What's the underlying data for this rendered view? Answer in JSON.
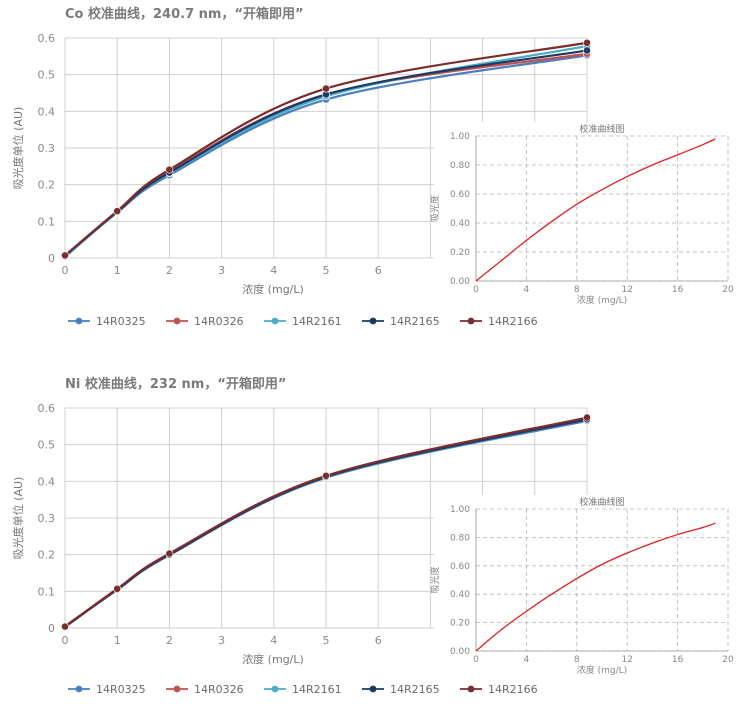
{
  "panels": [
    {
      "title": "Co 校准曲线，240.7 nm，“开箱即用”",
      "ylabel": "吸光度单位 (AU)",
      "xlabel": "浓度 (mg/L)"
    },
    {
      "title": "Ni 校准曲线，232 nm，“开箱即用”",
      "ylabel": "吸光度单位 (AU)",
      "xlabel": "浓度 (mg/L)"
    }
  ],
  "chart_data": [
    {
      "type": "line",
      "title": "Co 校准曲线，240.7 nm，“开箱即用”",
      "xlabel": "浓度 (mg/L)",
      "ylabel": "吸光度单位 (AU)",
      "x_ticks": [
        "0",
        "1",
        "2",
        "3",
        "4",
        "5",
        "6"
      ],
      "y_ticks": [
        "0",
        "0.1",
        "0.2",
        "0.3",
        "0.4",
        "0.5",
        "0.6"
      ],
      "xlim": [
        0,
        10
      ],
      "ylim": [
        0,
        0.6
      ],
      "grid": true,
      "legend": "bottom",
      "x": [
        0,
        1,
        2,
        5,
        10
      ],
      "series": [
        {
          "name": "14R0325",
          "color": "#4a7fc0",
          "values": [
            0.003,
            0.124,
            0.226,
            0.432,
            0.553
          ]
        },
        {
          "name": "14R0326",
          "color": "#c0504d",
          "values": [
            0.005,
            0.126,
            0.236,
            0.446,
            0.557
          ]
        },
        {
          "name": "14R2161",
          "color": "#4bacc6",
          "values": [
            0.004,
            0.125,
            0.231,
            0.441,
            0.578
          ]
        },
        {
          "name": "14R2165",
          "color": "#1f3864",
          "values": [
            0.006,
            0.126,
            0.233,
            0.446,
            0.566
          ]
        },
        {
          "name": "14R2166",
          "color": "#7b2c2c",
          "values": [
            0.007,
            0.128,
            0.241,
            0.462,
            0.587
          ]
        }
      ],
      "inset": {
        "title": "校准曲线图",
        "ylabel": "吸光度",
        "xlabel": "浓度 (mg/L)",
        "x_ticks": [
          "0",
          "4",
          "8",
          "12",
          "16",
          "20"
        ],
        "y_ticks": [
          "0.00",
          "0.20",
          "0.40",
          "0.60",
          "0.80",
          "1.00"
        ],
        "xlim": [
          0,
          20
        ],
        "ylim": [
          0,
          1
        ],
        "color": "#e02020",
        "x": [
          0,
          2,
          4,
          6,
          8,
          10,
          12,
          14,
          16,
          18,
          19
        ],
        "y": [
          0.0,
          0.14,
          0.28,
          0.41,
          0.53,
          0.63,
          0.72,
          0.8,
          0.87,
          0.94,
          0.98
        ]
      }
    },
    {
      "type": "line",
      "title": "Ni 校准曲线，232 nm，“开箱即用”",
      "xlabel": "浓度 (mg/L)",
      "ylabel": "吸光度单位 (AU)",
      "x_ticks": [
        "0",
        "1",
        "2",
        "3",
        "4",
        "5",
        "6"
      ],
      "y_ticks": [
        "0",
        "0.1",
        "0.2",
        "0.3",
        "0.4",
        "0.5",
        "0.6"
      ],
      "xlim": [
        0,
        10
      ],
      "ylim": [
        0,
        0.6
      ],
      "grid": true,
      "legend": "bottom",
      "x": [
        0,
        1,
        2,
        5,
        10
      ],
      "series": [
        {
          "name": "14R0325",
          "color": "#4a7fc0",
          "values": [
            0.004,
            0.104,
            0.199,
            0.41,
            0.565
          ]
        },
        {
          "name": "14R0326",
          "color": "#c0504d",
          "values": [
            0.003,
            0.106,
            0.202,
            0.412,
            0.57
          ]
        },
        {
          "name": "14R2161",
          "color": "#4bacc6",
          "values": [
            0.005,
            0.105,
            0.201,
            0.411,
            0.568
          ]
        },
        {
          "name": "14R2165",
          "color": "#1f3864",
          "values": [
            0.003,
            0.105,
            0.2,
            0.412,
            0.569
          ]
        },
        {
          "name": "14R2166",
          "color": "#7b2c2c",
          "values": [
            0.004,
            0.107,
            0.203,
            0.415,
            0.574
          ]
        }
      ],
      "inset": {
        "title": "校准曲线图",
        "ylabel": "吸光度",
        "xlabel": "浓度 (mg/L)",
        "x_ticks": [
          "0",
          "4",
          "8",
          "12",
          "16",
          "20"
        ],
        "y_ticks": [
          "0.00",
          "0.20",
          "0.40",
          "0.60",
          "0.80",
          "1.00"
        ],
        "xlim": [
          0,
          20
        ],
        "ylim": [
          0,
          1
        ],
        "color": "#e02020",
        "x": [
          0,
          2,
          4,
          6,
          8,
          10,
          12,
          14,
          16,
          18,
          19
        ],
        "y": [
          0.0,
          0.15,
          0.28,
          0.4,
          0.51,
          0.61,
          0.69,
          0.76,
          0.82,
          0.87,
          0.9
        ]
      }
    }
  ]
}
